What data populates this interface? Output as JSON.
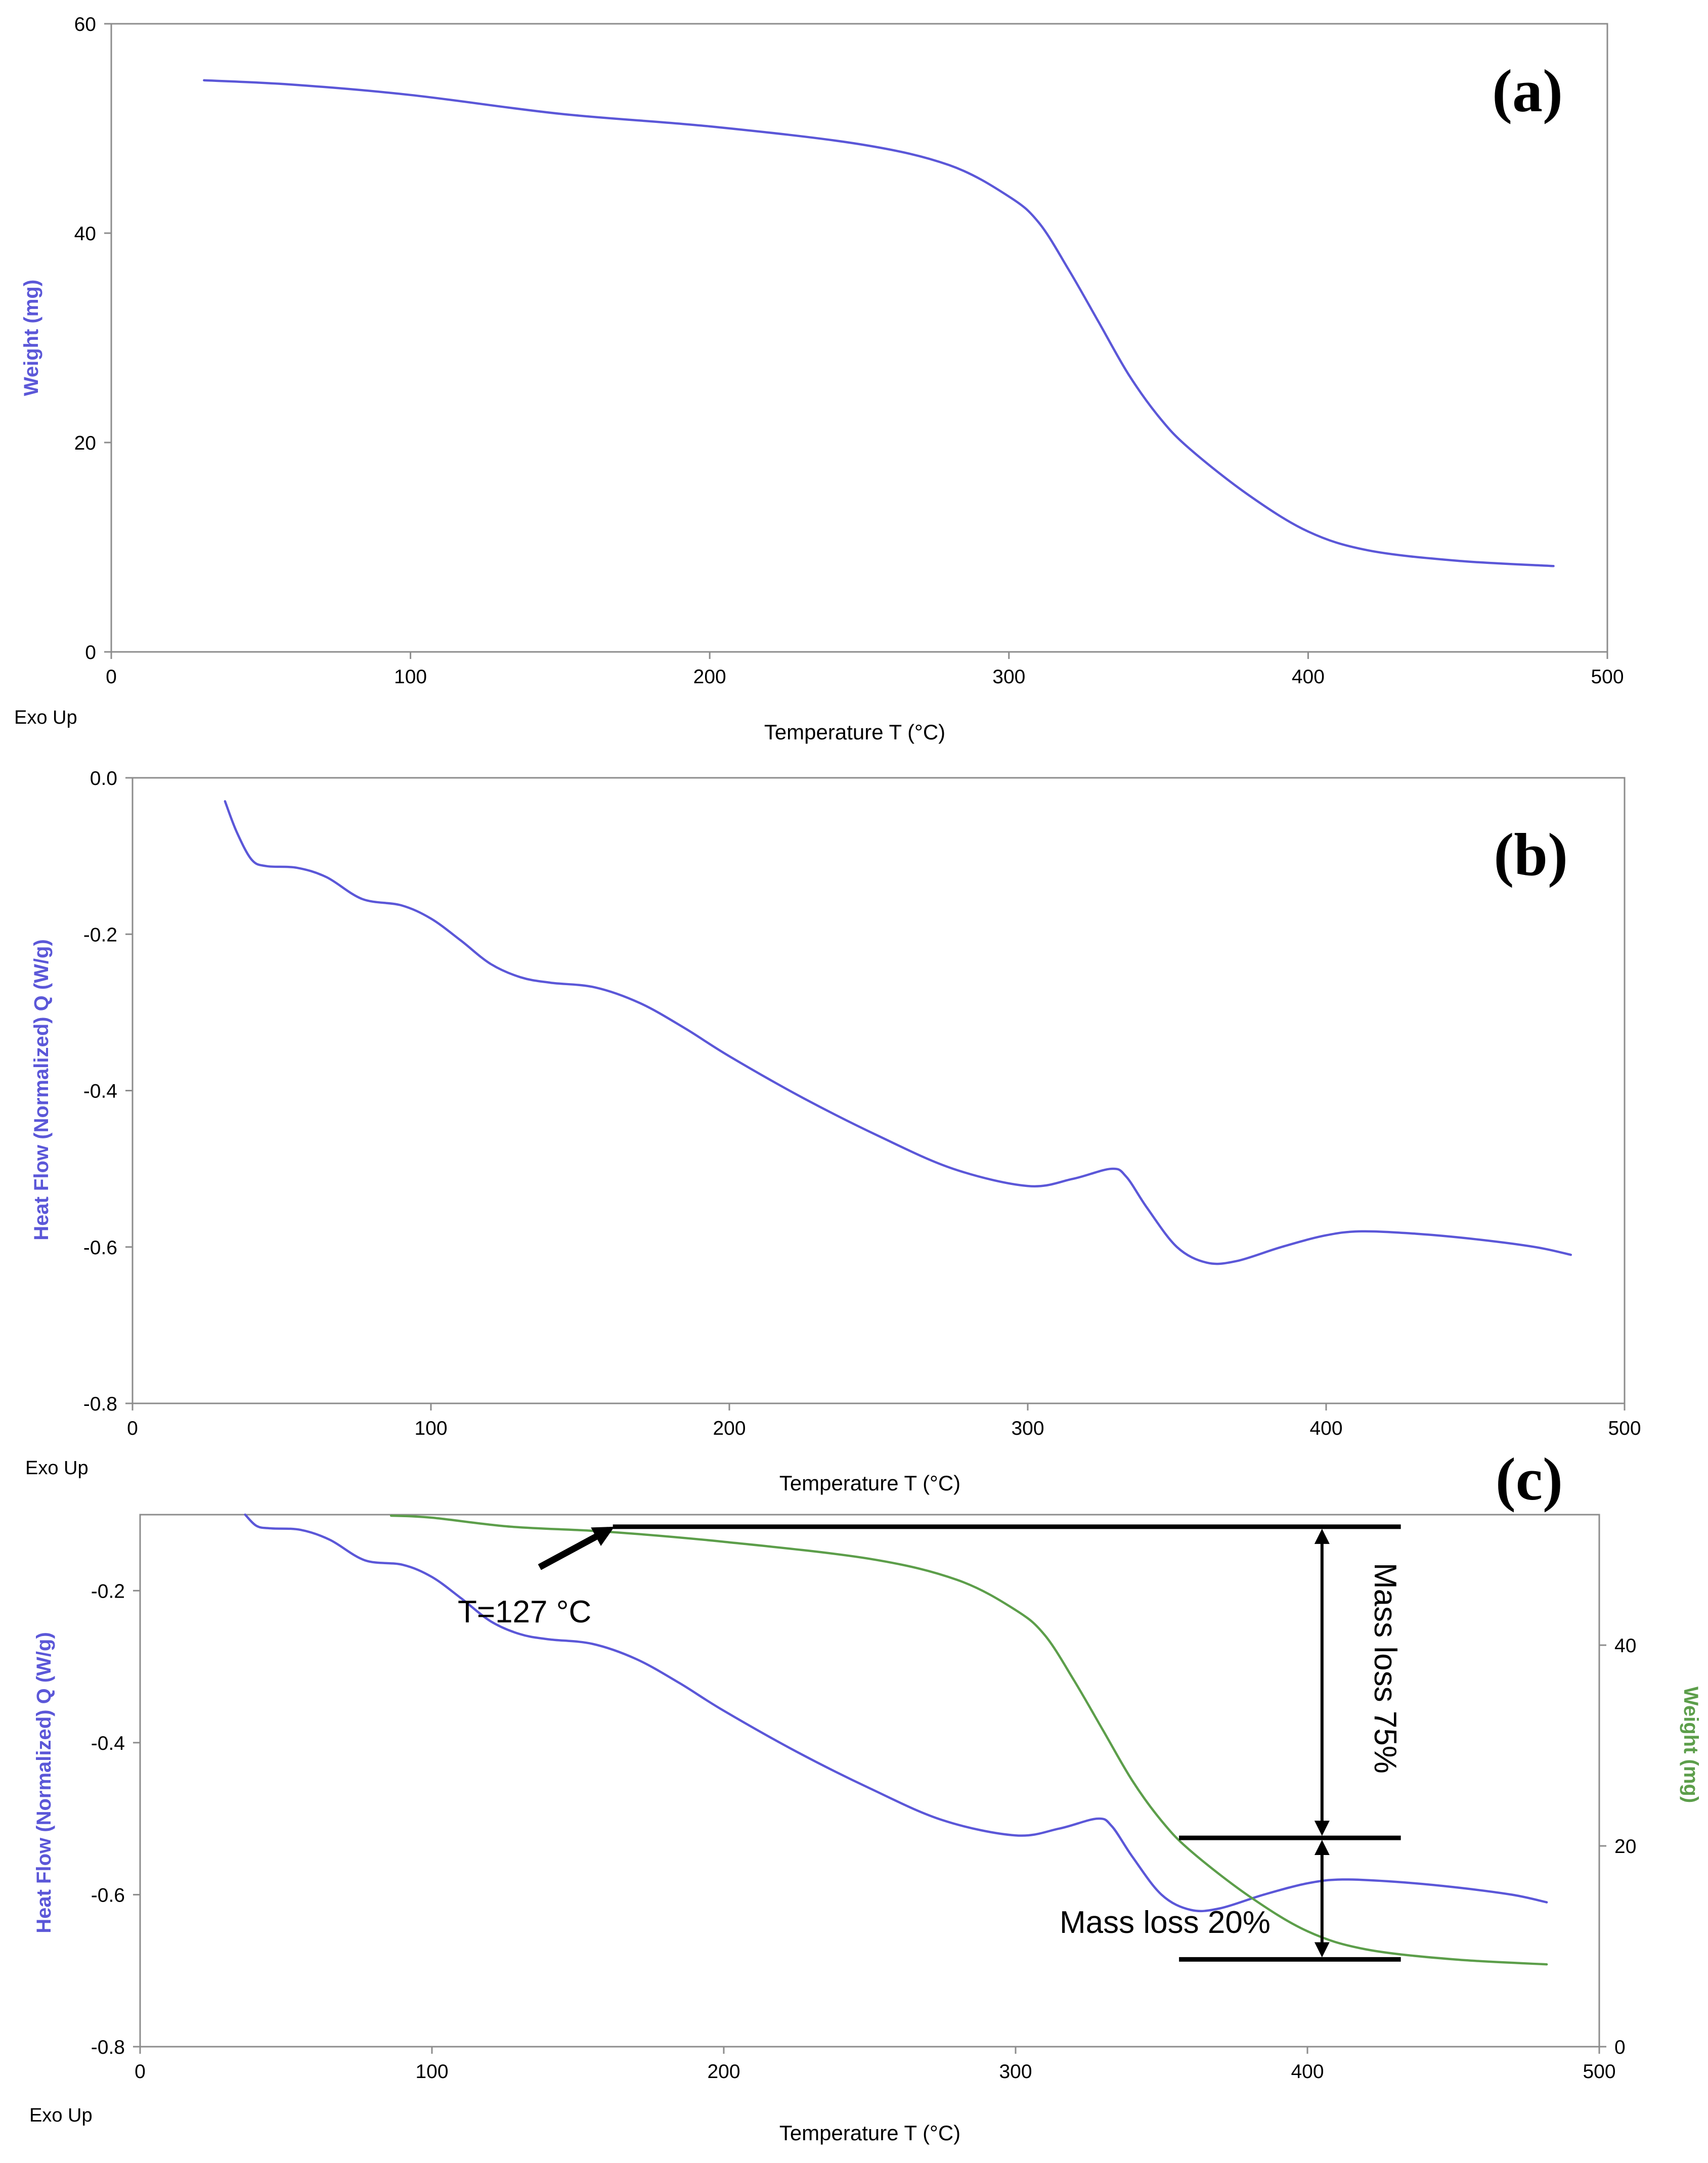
{
  "colors": {
    "heat_flow": "#5b57d8",
    "weight": "#5c9e4a",
    "axis": "#8c8c8c",
    "annotation": "#000000"
  },
  "chart_data": [
    {
      "type": "line",
      "panel_label": "(a)",
      "exo_label": "Exo Up",
      "xlabel": "Temperature T (°C)",
      "ylabel": "Weight (mg)",
      "xlim": [
        0,
        500
      ],
      "ylim": [
        0,
        60
      ],
      "x_ticks": [
        "0",
        "100",
        "200",
        "300",
        "400",
        "500"
      ],
      "y_ticks": [
        "0",
        "20",
        "40",
        "60"
      ],
      "series": [
        {
          "name": "Weight",
          "color": "#5b57d8",
          "points": [
            [
              31,
              54.6
            ],
            [
              60,
              54.2
            ],
            [
              100,
              53.2
            ],
            [
              150,
              51.4
            ],
            [
              200,
              50.2
            ],
            [
              250,
              48.5
            ],
            [
              280,
              46.5
            ],
            [
              300,
              43.5
            ],
            [
              310,
              41
            ],
            [
              320,
              36.5
            ],
            [
              330,
              31.5
            ],
            [
              340,
              26.5
            ],
            [
              350,
              22.5
            ],
            [
              360,
              19.5
            ],
            [
              380,
              15
            ],
            [
              400,
              11.5
            ],
            [
              420,
              9.7
            ],
            [
              450,
              8.7
            ],
            [
              482,
              8.2
            ]
          ]
        }
      ]
    },
    {
      "type": "line",
      "panel_label": "(b)",
      "exo_label": "Exo Up",
      "xlabel": "Temperature T (°C)",
      "ylabel": "Heat Flow (Normalized) Q (W/g)",
      "xlim": [
        0,
        500
      ],
      "ylim": [
        -0.8,
        0.0
      ],
      "x_ticks": [
        "0",
        "100",
        "200",
        "300",
        "400",
        "500"
      ],
      "y_ticks": [
        "0.0",
        "-0.2",
        "-0.4",
        "-0.6",
        "-0.8"
      ],
      "series": [
        {
          "name": "Heat Flow",
          "color": "#5b57d8",
          "points": [
            [
              31,
              -0.03
            ],
            [
              35,
              -0.07
            ],
            [
              40,
              -0.105
            ],
            [
              45,
              -0.113
            ],
            [
              55,
              -0.115
            ],
            [
              65,
              -0.127
            ],
            [
              77,
              -0.155
            ],
            [
              90,
              -0.163
            ],
            [
              100,
              -0.18
            ],
            [
              110,
              -0.208
            ],
            [
              120,
              -0.238
            ],
            [
              130,
              -0.255
            ],
            [
              140,
              -0.262
            ],
            [
              155,
              -0.268
            ],
            [
              170,
              -0.288
            ],
            [
              185,
              -0.32
            ],
            [
              200,
              -0.356
            ],
            [
              225,
              -0.41
            ],
            [
              250,
              -0.458
            ],
            [
              275,
              -0.5
            ],
            [
              300,
              -0.522
            ],
            [
              315,
              -0.513
            ],
            [
              328,
              -0.5
            ],
            [
              333,
              -0.51
            ],
            [
              340,
              -0.55
            ],
            [
              350,
              -0.6
            ],
            [
              360,
              -0.62
            ],
            [
              370,
              -0.618
            ],
            [
              385,
              -0.6
            ],
            [
              400,
              -0.585
            ],
            [
              412,
              -0.58
            ],
            [
              430,
              -0.583
            ],
            [
              450,
              -0.59
            ],
            [
              470,
              -0.6
            ],
            [
              482,
              -0.61
            ]
          ]
        }
      ]
    },
    {
      "type": "line",
      "panel_label": "(c)",
      "exo_label": "Exo Up",
      "xlabel": "Temperature T (°C)",
      "ylabel": "Heat Flow (Normalized) Q (W/g)",
      "y2label": "Weight (mg)",
      "xlim": [
        0,
        500
      ],
      "ylim": [
        -0.8,
        -0.1
      ],
      "y2lim": [
        0,
        53
      ],
      "x_ticks": [
        "0",
        "100",
        "200",
        "300",
        "400",
        "500"
      ],
      "y_ticks": [
        "-0.2",
        "-0.4",
        "-0.6",
        "-0.8"
      ],
      "y2_ticks": [
        "0",
        "20",
        "40"
      ],
      "series": [
        {
          "name": "Heat Flow",
          "axis": "left",
          "color": "#5b57d8",
          "points": [
            [
              36,
              -0.1
            ],
            [
              40,
              -0.115
            ],
            [
              45,
              -0.118
            ],
            [
              55,
              -0.12
            ],
            [
              65,
              -0.133
            ],
            [
              77,
              -0.16
            ],
            [
              90,
              -0.166
            ],
            [
              100,
              -0.182
            ],
            [
              110,
              -0.21
            ],
            [
              120,
              -0.24
            ],
            [
              130,
              -0.257
            ],
            [
              140,
              -0.264
            ],
            [
              155,
              -0.27
            ],
            [
              170,
              -0.29
            ],
            [
              185,
              -0.322
            ],
            [
              200,
              -0.358
            ],
            [
              225,
              -0.412
            ],
            [
              250,
              -0.46
            ],
            [
              275,
              -0.502
            ],
            [
              300,
              -0.522
            ],
            [
              315,
              -0.513
            ],
            [
              328,
              -0.5
            ],
            [
              333,
              -0.51
            ],
            [
              340,
              -0.55
            ],
            [
              350,
              -0.6
            ],
            [
              360,
              -0.62
            ],
            [
              370,
              -0.618
            ],
            [
              385,
              -0.6
            ],
            [
              400,
              -0.585
            ],
            [
              412,
              -0.58
            ],
            [
              430,
              -0.583
            ],
            [
              450,
              -0.59
            ],
            [
              470,
              -0.6
            ],
            [
              482,
              -0.61
            ]
          ]
        },
        {
          "name": "Weight",
          "axis": "right",
          "color": "#5c9e4a",
          "points": [
            [
              86,
              52.9
            ],
            [
              100,
              52.7
            ],
            [
              127,
              51.8
            ],
            [
              160,
              51.3
            ],
            [
              200,
              50.3
            ],
            [
              250,
              48.6
            ],
            [
              280,
              46.5
            ],
            [
              300,
              43.5
            ],
            [
              310,
              41
            ],
            [
              320,
              36.5
            ],
            [
              330,
              31.5
            ],
            [
              340,
              26.5
            ],
            [
              350,
              22.5
            ],
            [
              360,
              19.5
            ],
            [
              380,
              15
            ],
            [
              400,
              11.5
            ],
            [
              420,
              9.7
            ],
            [
              450,
              8.7
            ],
            [
              482,
              8.2
            ]
          ]
        }
      ],
      "annotations": {
        "temperature": "T=127 °C",
        "mass_loss_75": "Mass loss 75%",
        "mass_loss_20": "Mass loss 20%",
        "onset_x": 162,
        "level_top_mg": 51.8,
        "level_mid_mg": 20.8,
        "level_bottom_mg": 8.7,
        "line_start_x": 162,
        "mid_line_start_x": 356,
        "line_end_x": 432,
        "arrow_x": 405
      }
    }
  ]
}
